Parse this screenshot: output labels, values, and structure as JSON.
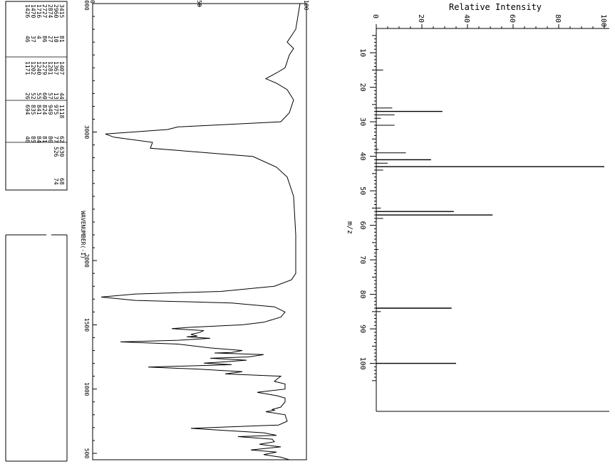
{
  "chart_data": [
    {
      "type": "table",
      "rows": [
        [
          "3415",
          "81",
          "1407",
          "44",
          "1118",
          "62",
          "630",
          "68"
        ],
        [
          "2960",
          "10",
          "1367",
          "13",
          "975",
          "77",
          "526",
          "74"
        ],
        [
          "2874",
          "27",
          "1281",
          "57",
          "949",
          "86",
          "",
          ""
        ],
        [
          "2727",
          "86",
          "1279",
          "60",
          "824",
          "81",
          "",
          ""
        ],
        [
          "1716",
          "4",
          "1240",
          "55",
          "841",
          "84",
          "",
          ""
        ],
        [
          "1470",
          "37",
          "1202",
          "52",
          "835",
          "85",
          "",
          ""
        ],
        [
          "1426",
          "46",
          "1171",
          "26",
          "694",
          "46",
          "",
          ""
        ]
      ]
    },
    {
      "type": "line",
      "xlabel": "WAVENUMBER(-1)",
      "x_ticks": [
        "4000",
        "3000",
        "2000",
        "1500",
        "1000",
        "500"
      ],
      "y_ticks": [
        "0",
        "50",
        "100"
      ],
      "series": [
        {
          "points": [
            [
              4000,
              97
            ],
            [
              3900,
              96
            ],
            [
              3800,
              95
            ],
            [
              3700,
              91
            ],
            [
              3650,
              94
            ],
            [
              3600,
              92
            ],
            [
              3550,
              91
            ],
            [
              3500,
              90
            ],
            [
              3460,
              86
            ],
            [
              3415,
              81
            ],
            [
              3380,
              86
            ],
            [
              3330,
              91
            ],
            [
              3250,
              94
            ],
            [
              3150,
              92
            ],
            [
              3080,
              88
            ],
            [
              3040,
              40
            ],
            [
              3020,
              35
            ],
            [
              2985,
              6
            ],
            [
              2960,
              10
            ],
            [
              2920,
              28
            ],
            [
              2874,
              27
            ],
            [
              2850,
              45
            ],
            [
              2810,
              75
            ],
            [
              2727,
              86
            ],
            [
              2650,
              91
            ],
            [
              2500,
              94
            ],
            [
              2200,
              95
            ],
            [
              2000,
              95
            ],
            [
              1900,
              95
            ],
            [
              1850,
              93
            ],
            [
              1800,
              85
            ],
            [
              1760,
              60
            ],
            [
              1740,
              20
            ],
            [
              1716,
              4
            ],
            [
              1690,
              20
            ],
            [
              1670,
              65
            ],
            [
              1640,
              85
            ],
            [
              1600,
              90
            ],
            [
              1560,
              88
            ],
            [
              1520,
              80
            ],
            [
              1500,
              70
            ],
            [
              1480,
              45
            ],
            [
              1470,
              37
            ],
            [
              1455,
              52
            ],
            [
              1440,
              50
            ],
            [
              1426,
              46
            ],
            [
              1412,
              49
            ],
            [
              1407,
              44
            ],
            [
              1395,
              55
            ],
            [
              1380,
              40
            ],
            [
              1367,
              13
            ],
            [
              1350,
              40
            ],
            [
              1320,
              55
            ],
            [
              1300,
              70
            ],
            [
              1285,
              65
            ],
            [
              1281,
              57
            ],
            [
              1279,
              60
            ],
            [
              1268,
              80
            ],
            [
              1250,
              73
            ],
            [
              1240,
              55
            ],
            [
              1225,
              72
            ],
            [
              1210,
              60
            ],
            [
              1202,
              52
            ],
            [
              1190,
              65
            ],
            [
              1171,
              26
            ],
            [
              1155,
              50
            ],
            [
              1135,
              70
            ],
            [
              1118,
              62
            ],
            [
              1100,
              88
            ],
            [
              1060,
              85
            ],
            [
              1040,
              90
            ],
            [
              1000,
              90
            ],
            [
              975,
              77
            ],
            [
              960,
              82
            ],
            [
              949,
              86
            ],
            [
              930,
              90
            ],
            [
              900,
              90
            ],
            [
              860,
              88
            ],
            [
              841,
              84
            ],
            [
              835,
              85
            ],
            [
              824,
              81
            ],
            [
              800,
              90
            ],
            [
              750,
              91
            ],
            [
              720,
              87
            ],
            [
              694,
              46
            ],
            [
              680,
              60
            ],
            [
              660,
              80
            ],
            [
              640,
              86
            ],
            [
              630,
              68
            ],
            [
              610,
              84
            ],
            [
              590,
              85
            ],
            [
              570,
              78
            ],
            [
              550,
              88
            ],
            [
              526,
              74
            ],
            [
              510,
              86
            ],
            [
              490,
              80
            ],
            [
              470,
              88
            ],
            [
              450,
              92
            ]
          ]
        }
      ]
    },
    {
      "type": "bar",
      "title": "Relative Intensity",
      "xlabel": "m/z",
      "xlim": [
        0,
        110
      ],
      "ylim": [
        0,
        100
      ],
      "x_ticks": [
        "10",
        "20",
        "30",
        "40",
        "50",
        "60",
        "70",
        "80",
        "90",
        "100"
      ],
      "y_ticks": [
        "0",
        "20",
        "40",
        "60",
        "80",
        "100"
      ],
      "mz": [
        15,
        26,
        27,
        28,
        29,
        31,
        38,
        39,
        41,
        42,
        43,
        44,
        55,
        56,
        57,
        58,
        67,
        84,
        85,
        100
      ],
      "intensity": [
        3,
        7,
        29,
        8,
        2,
        8,
        1,
        13,
        24,
        5,
        100,
        3,
        2,
        34,
        51,
        3,
        1,
        33,
        2,
        35
      ]
    }
  ]
}
